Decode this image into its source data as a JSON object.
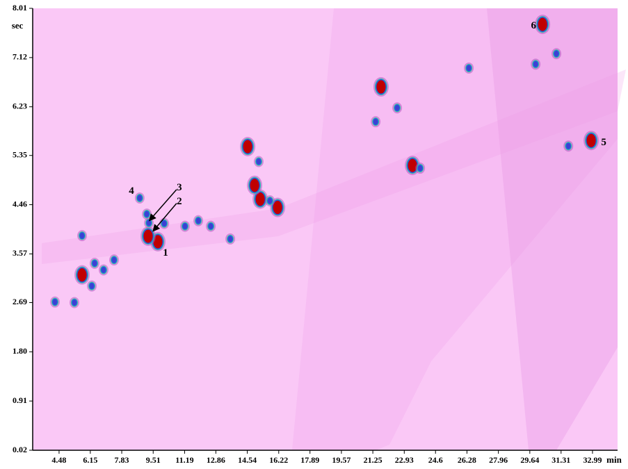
{
  "chart_data": {
    "type": "spot-map",
    "x_label": "min",
    "y_label": "sec",
    "xlim": [
      3.07,
      34.33
    ],
    "ylim": [
      0.02,
      8.01
    ],
    "xticks": [
      4.48,
      6.15,
      7.83,
      9.51,
      11.19,
      12.86,
      14.54,
      16.22,
      17.89,
      19.57,
      21.25,
      22.93,
      24.6,
      26.28,
      27.96,
      29.64,
      31.31,
      32.99
    ],
    "yticks": [
      0.02,
      0.91,
      {
        "value": 1.8,
        "label": "1.80"
      },
      2.69,
      3.57,
      4.46,
      5.35,
      6.23,
      7.12,
      8.01
    ],
    "background": "#fac8f6",
    "series": [
      {
        "color": "#c00000",
        "x": [
          9.76,
          9.24,
          32.92,
          30.32,
          21.69,
          23.37,
          14.56,
          15.23,
          14.93,
          5.71,
          16.16
        ],
        "values": [
          3.79,
          3.89,
          5.62,
          7.72,
          6.59,
          5.17,
          5.51,
          4.56,
          4.81,
          3.19,
          4.41
        ]
      },
      {
        "color": "#3f3fd0",
        "x": [
          9.28,
          8.79,
          22.55,
          21.4,
          15.15,
          15.75,
          31.06,
          5.71,
          4.26,
          5.3,
          6.38,
          7.42,
          11.21,
          11.92,
          12.59,
          13.63,
          23.78,
          26.38,
          29.95,
          31.7,
          6.23,
          6.86,
          10.1,
          9.17
        ],
        "values": [
          4.13,
          4.58,
          6.21,
          5.96,
          5.24,
          4.53,
          7.19,
          3.9,
          2.7,
          2.69,
          3.4,
          3.46,
          4.07,
          4.17,
          4.07,
          3.84,
          5.12,
          6.93,
          7.0,
          5.52,
          2.99,
          3.28,
          4.12,
          4.29
        ]
      }
    ],
    "annotations": [
      {
        "text": "1",
        "x": 10.17,
        "y": 3.58
      },
      {
        "text": "2",
        "x": 10.91,
        "y": 4.51,
        "arrow_x": 9.5,
        "arrow_y": 3.98
      },
      {
        "text": "3",
        "x": 10.91,
        "y": 4.76,
        "arrow_x": 9.3,
        "arrow_y": 4.17
      },
      {
        "text": "4",
        "x": 8.35,
        "y": 4.7
      },
      {
        "text": "5",
        "x": 33.59,
        "y": 5.58
      },
      {
        "text": "6",
        "x": 29.84,
        "y": 7.69
      }
    ]
  }
}
